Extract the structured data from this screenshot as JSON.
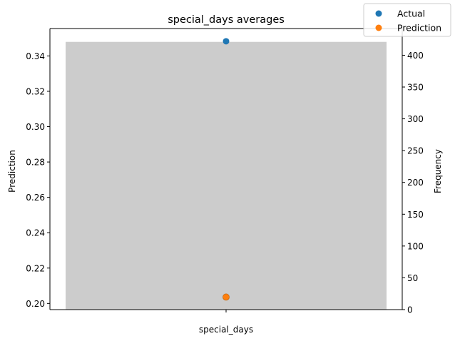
{
  "chart_data": {
    "type": "bar",
    "title": "special_days averages",
    "xlabel": "special_days",
    "categories": [
      ""
    ],
    "y_left": {
      "label": "Prediction",
      "ylim": [
        0.1965,
        0.3555
      ],
      "ticks": [
        0.2,
        0.22,
        0.24,
        0.26,
        0.28,
        0.3,
        0.32,
        0.34
      ],
      "tick_labels": [
        "0.20",
        "0.22",
        "0.24",
        "0.26",
        "0.28",
        "0.30",
        "0.32",
        "0.34"
      ]
    },
    "y_right": {
      "label": "Frequency",
      "ylim": [
        0,
        442
      ],
      "ticks": [
        0,
        50,
        100,
        150,
        200,
        250,
        300,
        350,
        400
      ],
      "tick_labels": [
        "0",
        "50",
        "100",
        "150",
        "200",
        "250",
        "300",
        "350",
        "400"
      ]
    },
    "frequency_bar": {
      "value": 421,
      "color": "#cccccc"
    },
    "series": [
      {
        "name": "Actual",
        "values": [
          0.3483
        ],
        "color": "#1f77b4",
        "axis": "left"
      },
      {
        "name": "Prediction",
        "values": [
          0.2036
        ],
        "color": "#ff7f0e",
        "axis": "left"
      }
    ],
    "legend_placement": "top-right",
    "grid": false
  }
}
